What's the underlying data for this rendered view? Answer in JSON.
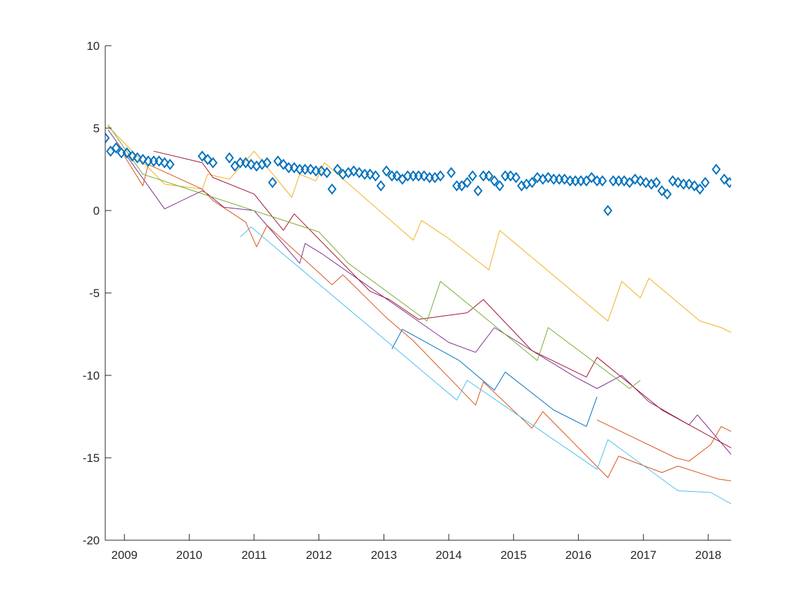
{
  "chart_data": {
    "type": "line",
    "title": "",
    "xlabel": "",
    "ylabel": "",
    "xlim": [
      "2008-09-15",
      "2018-05-10"
    ],
    "ylim": [
      -20,
      10
    ],
    "grid": false,
    "x_ticks": [
      "2009",
      "2010",
      "2011",
      "2012",
      "2013",
      "2014",
      "2015",
      "2016",
      "2017",
      "2018"
    ],
    "y_ticks": [
      "10",
      "5",
      "0",
      "-5",
      "-10",
      "-15",
      "-20"
    ],
    "colors": {
      "blue": "#0072BD",
      "orange": "#D95319",
      "yellow": "#EDB120",
      "purple": "#7E2F8E",
      "green": "#77AC30",
      "cyan": "#4DBEEE",
      "dark_red": "#A2142F"
    },
    "series": [
      {
        "marker": "diamond",
        "line": false,
        "color": "#0072BD",
        "points": [
          [
            "2008-09-15",
            4.4
          ],
          [
            "2008-10-15",
            3.6
          ],
          [
            "2008-11-15",
            3.8
          ],
          [
            "2008-12-15",
            3.5
          ],
          [
            "2009-01-15",
            3.5
          ],
          [
            "2009-02-15",
            3.3
          ],
          [
            "2009-03-15",
            3.2
          ],
          [
            "2009-04-15",
            3.1
          ],
          [
            "2009-05-15",
            3.0
          ],
          [
            "2009-06-15",
            3.0
          ],
          [
            "2009-07-15",
            3.0
          ],
          [
            "2009-08-15",
            2.9
          ],
          [
            "2009-09-15",
            2.8
          ],
          [
            "2010-03-15",
            3.3
          ],
          [
            "2010-04-15",
            3.1
          ],
          [
            "2010-05-15",
            2.9
          ],
          [
            "2010-08-15",
            3.2
          ],
          [
            "2010-09-15",
            2.7
          ],
          [
            "2010-10-15",
            2.9
          ],
          [
            "2010-11-15",
            2.9
          ],
          [
            "2010-12-15",
            2.8
          ],
          [
            "2011-01-15",
            2.7
          ],
          [
            "2011-02-15",
            2.8
          ],
          [
            "2011-03-15",
            2.9
          ],
          [
            "2011-04-15",
            1.7
          ],
          [
            "2011-05-15",
            3.0
          ],
          [
            "2011-06-15",
            2.8
          ],
          [
            "2011-07-15",
            2.6
          ],
          [
            "2011-08-15",
            2.6
          ],
          [
            "2011-09-15",
            2.5
          ],
          [
            "2011-10-15",
            2.5
          ],
          [
            "2011-11-15",
            2.5
          ],
          [
            "2011-12-15",
            2.4
          ],
          [
            "2012-01-15",
            2.4
          ],
          [
            "2012-02-15",
            2.3
          ],
          [
            "2012-03-15",
            1.3
          ],
          [
            "2012-04-15",
            2.5
          ],
          [
            "2012-05-15",
            2.2
          ],
          [
            "2012-06-15",
            2.3
          ],
          [
            "2012-07-15",
            2.4
          ],
          [
            "2012-08-15",
            2.3
          ],
          [
            "2012-09-15",
            2.2
          ],
          [
            "2012-10-15",
            2.2
          ],
          [
            "2012-11-15",
            2.1
          ],
          [
            "2012-12-15",
            1.5
          ],
          [
            "2013-01-15",
            2.4
          ],
          [
            "2013-02-15",
            2.1
          ],
          [
            "2013-03-15",
            2.1
          ],
          [
            "2013-04-15",
            1.9
          ],
          [
            "2013-05-15",
            2.1
          ],
          [
            "2013-06-15",
            2.1
          ],
          [
            "2013-07-15",
            2.1
          ],
          [
            "2013-08-15",
            2.1
          ],
          [
            "2013-09-15",
            2.0
          ],
          [
            "2013-10-15",
            2.0
          ],
          [
            "2013-11-15",
            2.1
          ],
          [
            "2014-01-15",
            2.3
          ],
          [
            "2014-02-15",
            1.5
          ],
          [
            "2014-03-15",
            1.5
          ],
          [
            "2014-04-15",
            1.7
          ],
          [
            "2014-05-15",
            2.1
          ],
          [
            "2014-06-15",
            1.2
          ],
          [
            "2014-07-15",
            2.1
          ],
          [
            "2014-08-15",
            2.1
          ],
          [
            "2014-09-15",
            1.8
          ],
          [
            "2014-10-15",
            1.5
          ],
          [
            "2014-11-15",
            2.1
          ],
          [
            "2014-12-15",
            2.1
          ],
          [
            "2015-01-15",
            2.0
          ],
          [
            "2015-02-15",
            1.5
          ],
          [
            "2015-03-15",
            1.6
          ],
          [
            "2015-04-15",
            1.7
          ],
          [
            "2015-05-15",
            2.0
          ],
          [
            "2015-06-15",
            1.9
          ],
          [
            "2015-07-15",
            2.0
          ],
          [
            "2015-08-15",
            1.9
          ],
          [
            "2015-09-15",
            1.9
          ],
          [
            "2015-10-15",
            1.9
          ],
          [
            "2015-11-15",
            1.8
          ],
          [
            "2015-12-15",
            1.8
          ],
          [
            "2016-01-15",
            1.8
          ],
          [
            "2016-02-15",
            1.8
          ],
          [
            "2016-03-15",
            2.0
          ],
          [
            "2016-04-15",
            1.8
          ],
          [
            "2016-05-15",
            1.8
          ],
          [
            "2016-06-15",
            0.0
          ],
          [
            "2016-07-15",
            1.8
          ],
          [
            "2016-08-15",
            1.8
          ],
          [
            "2016-09-15",
            1.8
          ],
          [
            "2016-10-15",
            1.7
          ],
          [
            "2016-11-15",
            1.9
          ],
          [
            "2016-12-15",
            1.8
          ],
          [
            "2017-01-15",
            1.7
          ],
          [
            "2017-02-15",
            1.6
          ],
          [
            "2017-03-15",
            1.7
          ],
          [
            "2017-04-15",
            1.2
          ],
          [
            "2017-05-15",
            1.0
          ],
          [
            "2017-06-15",
            1.8
          ],
          [
            "2017-07-15",
            1.7
          ],
          [
            "2017-08-15",
            1.6
          ],
          [
            "2017-09-15",
            1.6
          ],
          [
            "2017-10-15",
            1.5
          ],
          [
            "2017-11-15",
            1.3
          ],
          [
            "2017-12-15",
            1.7
          ],
          [
            "2018-02-15",
            2.5
          ],
          [
            "2018-04-01",
            1.9
          ],
          [
            "2018-05-01",
            1.7
          ]
        ]
      },
      {
        "color": "#EDB120",
        "points": [
          [
            "2008-10-01",
            5.1
          ],
          [
            "2009-08-15",
            1.6
          ],
          [
            "2010-03-15",
            1.3
          ],
          [
            "2010-04-15",
            2.2
          ],
          [
            "2010-08-15",
            1.9
          ],
          [
            "2011-01-01",
            3.6
          ],
          [
            "2011-08-01",
            0.8
          ],
          [
            "2011-09-15",
            2.2
          ],
          [
            "2011-12-15",
            1.8
          ],
          [
            "2012-02-01",
            2.9
          ],
          [
            "2013-06-15",
            -1.8
          ],
          [
            "2013-08-01",
            -0.6
          ],
          [
            "2014-01-01",
            -1.7
          ],
          [
            "2014-08-15",
            -3.6
          ],
          [
            "2014-10-15",
            -1.2
          ],
          [
            "2016-06-15",
            -6.7
          ],
          [
            "2016-09-01",
            -4.3
          ],
          [
            "2016-12-15",
            -5.3
          ],
          [
            "2017-02-01",
            -4.1
          ],
          [
            "2017-11-15",
            -6.7
          ],
          [
            "2018-03-15",
            -7.1
          ],
          [
            "2018-05-10",
            -7.4
          ]
        ]
      },
      {
        "color": "#7E2F8E",
        "points": [
          [
            "2008-10-01",
            4.9
          ],
          [
            "2009-08-15",
            0.1
          ],
          [
            "2010-03-15",
            1.2
          ],
          [
            "2010-04-15",
            1.0
          ],
          [
            "2010-07-15",
            0.2
          ],
          [
            "2011-01-01",
            0.0
          ],
          [
            "2011-09-15",
            -3.2
          ],
          [
            "2011-10-15",
            -2.0
          ],
          [
            "2012-01-15",
            -2.6
          ],
          [
            "2014-01-01",
            -8.0
          ],
          [
            "2014-06-01",
            -8.6
          ],
          [
            "2014-09-15",
            -7.1
          ],
          [
            "2015-12-15",
            -10.1
          ],
          [
            "2016-04-15",
            -10.8
          ],
          [
            "2016-09-01",
            -10.0
          ],
          [
            "2016-12-15",
            -11.1
          ],
          [
            "2017-02-01",
            -11.6
          ],
          [
            "2017-09-15",
            -13.0
          ],
          [
            "2017-11-01",
            -12.4
          ],
          [
            "2018-05-10",
            -14.8
          ]
        ]
      },
      {
        "color": "#A2142F",
        "points": [
          [
            "2009-06-15",
            3.6
          ],
          [
            "2010-03-15",
            2.9
          ],
          [
            "2010-05-15",
            2.0
          ],
          [
            "2011-01-01",
            1.0
          ],
          [
            "2011-06-15",
            -1.2
          ],
          [
            "2011-08-15",
            -0.2
          ],
          [
            "2012-10-15",
            -4.9
          ],
          [
            "2013-02-01",
            -5.4
          ],
          [
            "2013-07-15",
            -6.6
          ],
          [
            "2014-04-15",
            -6.2
          ],
          [
            "2014-07-15",
            -5.4
          ],
          [
            "2015-04-15",
            -8.5
          ],
          [
            "2016-02-15",
            -10.1
          ],
          [
            "2016-04-15",
            -8.9
          ],
          [
            "2017-04-15",
            -12.1
          ],
          [
            "2018-05-10",
            -14.4
          ]
        ]
      },
      {
        "color": "#D95319",
        "points": [
          [
            "2009-01-01",
            3.3
          ],
          [
            "2009-04-15",
            1.5
          ],
          [
            "2009-05-15",
            2.8
          ],
          [
            "2010-03-15",
            1.3
          ],
          [
            "2010-05-15",
            0.6
          ],
          [
            "2010-11-15",
            -0.7
          ],
          [
            "2011-01-15",
            -2.2
          ],
          [
            "2011-03-15",
            -0.9
          ],
          [
            "2012-03-15",
            -4.5
          ],
          [
            "2012-05-15",
            -3.9
          ],
          [
            "2013-01-15",
            -6.5
          ],
          [
            "2013-06-15",
            -7.9
          ],
          [
            "2014-06-01",
            -11.8
          ],
          [
            "2014-07-15",
            -10.4
          ],
          [
            "2015-04-15",
            -13.2
          ],
          [
            "2015-06-15",
            -12.2
          ],
          [
            "2016-06-15",
            -16.2
          ],
          [
            "2016-08-15",
            -14.9
          ],
          [
            "2017-04-15",
            -15.9
          ],
          [
            "2017-07-15",
            -15.5
          ],
          [
            "2018-03-01",
            -16.3
          ],
          [
            "2018-05-10",
            -16.4
          ]
        ]
      },
      {
        "color": "#D95319",
        "points": [
          [
            "2016-04-15",
            -12.7
          ],
          [
            "2017-07-01",
            -15.0
          ],
          [
            "2017-09-15",
            -15.2
          ],
          [
            "2018-01-15",
            -14.2
          ],
          [
            "2018-03-15",
            -13.1
          ],
          [
            "2018-05-10",
            -13.4
          ]
        ]
      },
      {
        "color": "#0072BD",
        "points": [
          [
            "2013-02-15",
            -8.4
          ],
          [
            "2013-04-15",
            -7.2
          ],
          [
            "2014-03-01",
            -9.1
          ],
          [
            "2014-09-15",
            -10.9
          ],
          [
            "2014-11-15",
            -9.8
          ],
          [
            "2015-08-15",
            -12.1
          ],
          [
            "2016-02-15",
            -13.1
          ],
          [
            "2016-04-15",
            -11.3
          ]
        ]
      },
      {
        "color": "#4DBEEE",
        "points": [
          [
            "2010-10-15",
            -1.6
          ],
          [
            "2010-12-15",
            -1.0
          ],
          [
            "2014-02-15",
            -11.5
          ],
          [
            "2014-04-15",
            -10.3
          ],
          [
            "2016-04-15",
            -15.7
          ],
          [
            "2016-06-15",
            -13.9
          ],
          [
            "2017-07-15",
            -17.0
          ],
          [
            "2018-01-15",
            -17.1
          ],
          [
            "2018-05-10",
            -17.8
          ]
        ]
      },
      {
        "color": "#77AC30",
        "points": [
          [
            "2008-10-01",
            5.2
          ],
          [
            "2009-04-15",
            2.2
          ],
          [
            "2012-01-01",
            -1.3
          ],
          [
            "2012-06-15",
            -3.2
          ],
          [
            "2013-09-01",
            -6.7
          ],
          [
            "2013-11-15",
            -4.3
          ],
          [
            "2015-05-15",
            -9.1
          ],
          [
            "2015-07-15",
            -7.1
          ],
          [
            "2016-10-15",
            -10.8
          ],
          [
            "2016-12-15",
            -10.3
          ]
        ]
      }
    ]
  }
}
